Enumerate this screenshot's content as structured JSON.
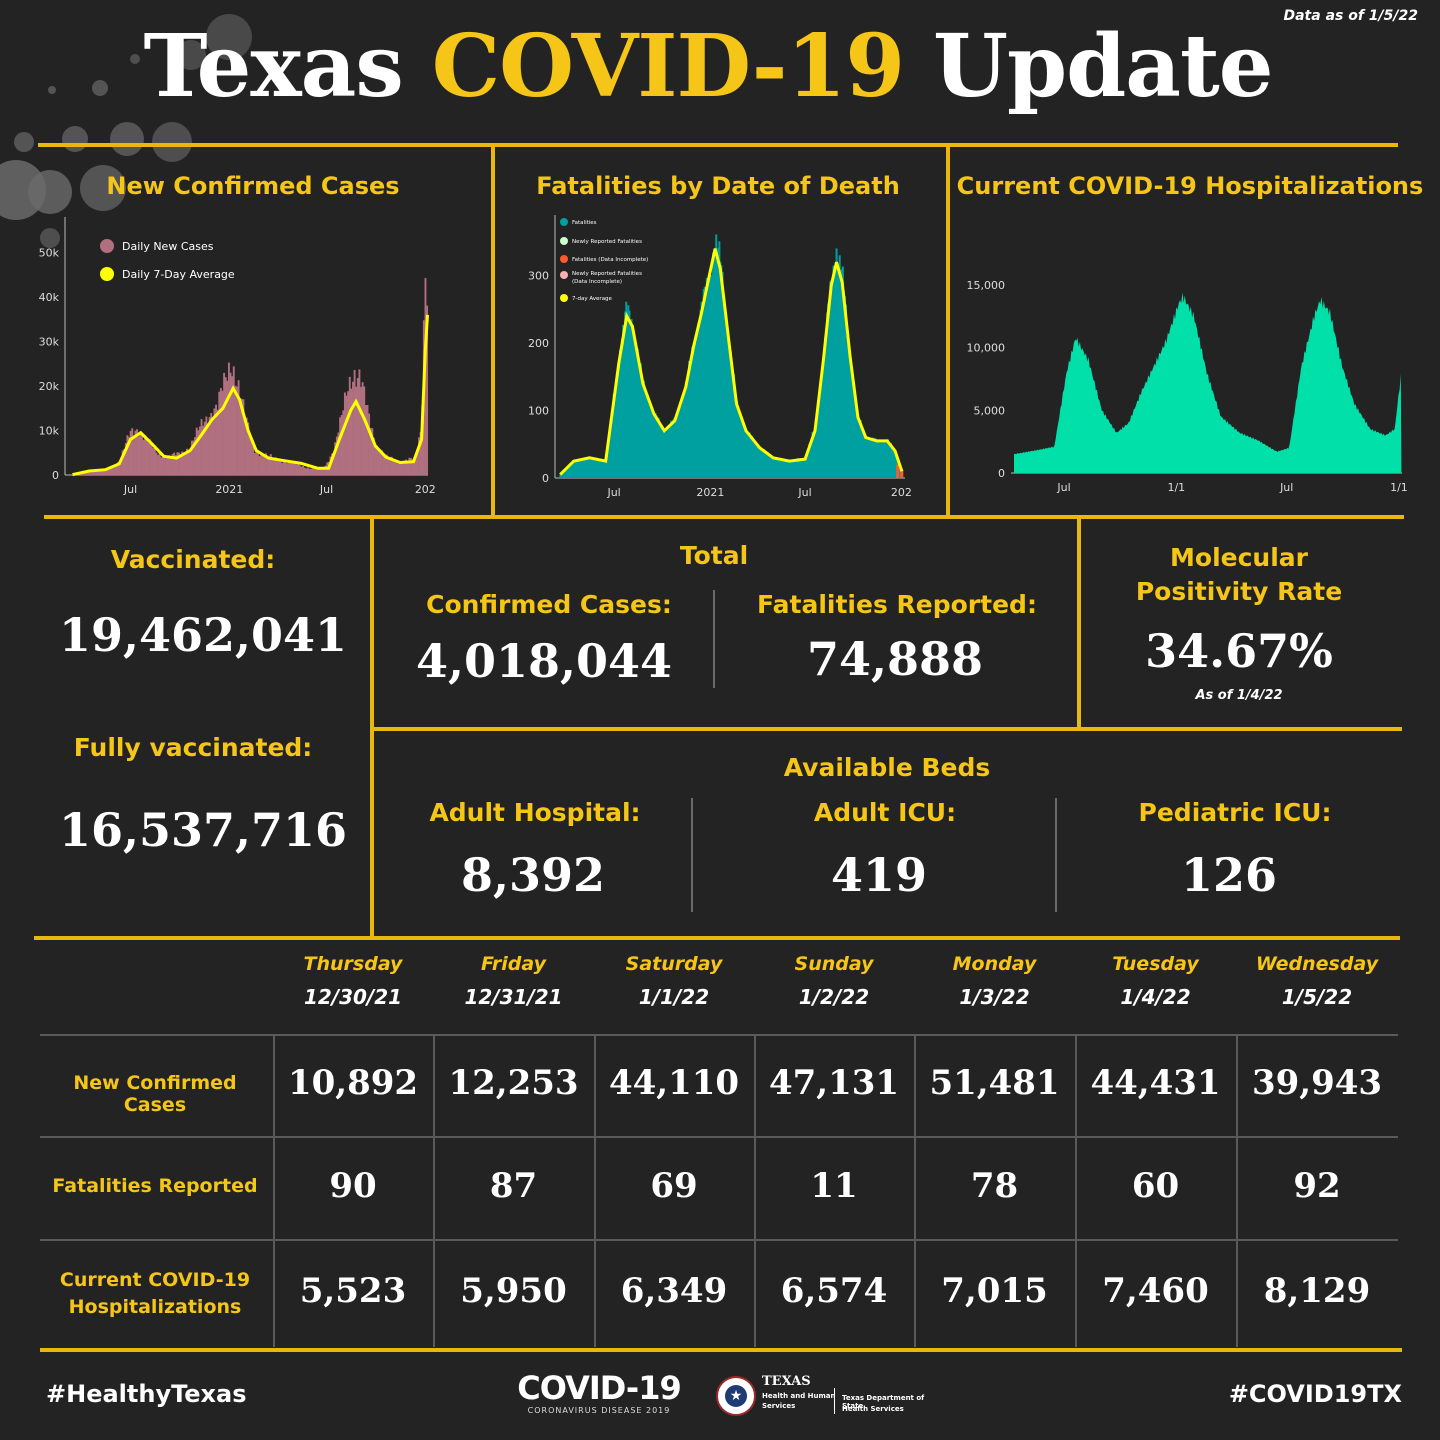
{
  "header": {
    "title_part1": "Texas",
    "title_part2": "COVID-19",
    "title_part3": "Update",
    "data_as_of": "Data as of 1/5/22"
  },
  "colors": {
    "background": "#232323",
    "accent": "#f5c518",
    "divider": "#e8b80c",
    "cases_bar": "#b07080",
    "average_line": "#ffff00",
    "fatalities_bar": "#00a0a0",
    "hospitalizations_area": "#00e0a8"
  },
  "charts": {
    "cases_title": "New Confirmed Cases",
    "fatalities_title": "Fatalities by Date of Death",
    "hosp_title": "Current COVID-19 Hospitalizations"
  },
  "chart_data": [
    {
      "type": "bar",
      "title": "New Confirmed Cases",
      "xlabel": "",
      "ylabel": "",
      "x_ticks": [
        "Jul",
        "2021",
        "Jul",
        "202"
      ],
      "y_ticks": [
        "0",
        "10k",
        "20k",
        "30k",
        "40k",
        "50k"
      ],
      "ylim": [
        0,
        58000
      ],
      "legend_position": "top-left",
      "series": [
        {
          "name": "Daily New Cases",
          "x": [
            "2020-03-15",
            "2020-04-15",
            "2020-05-15",
            "2020-06-10",
            "2020-07-01",
            "2020-07-15",
            "2020-08-01",
            "2020-08-20",
            "2020-09-10",
            "2020-10-01",
            "2020-10-20",
            "2020-11-10",
            "2020-11-25",
            "2020-12-10",
            "2020-12-25",
            "2021-01-05",
            "2021-01-15",
            "2021-01-30",
            "2021-02-15",
            "2021-03-05",
            "2021-04-01",
            "2021-05-01",
            "2021-06-01",
            "2021-06-25",
            "2021-07-15",
            "2021-07-30",
            "2021-08-10",
            "2021-08-20",
            "2021-09-01",
            "2021-09-15",
            "2021-10-01",
            "2021-10-20",
            "2021-11-10",
            "2021-11-30",
            "2021-12-15",
            "2021-12-25",
            "2022-01-01",
            "2022-01-05"
          ],
          "values": [
            100,
            1000,
            1200,
            3000,
            9500,
            10800,
            7500,
            5000,
            4000,
            4800,
            6500,
            11000,
            14000,
            15500,
            21000,
            26000,
            22000,
            13000,
            6000,
            4500,
            3500,
            2600,
            1500,
            1200,
            6000,
            13000,
            20000,
            24000,
            22000,
            14000,
            7000,
            4000,
            3000,
            3500,
            3500,
            12000,
            51500,
            40000
          ]
        },
        {
          "name": "Daily 7-Day Average",
          "x": [
            "2020-03-15",
            "2020-04-15",
            "2020-05-15",
            "2020-06-10",
            "2020-07-01",
            "2020-07-20",
            "2020-08-10",
            "2020-09-01",
            "2020-09-25",
            "2020-10-20",
            "2020-11-10",
            "2020-11-30",
            "2020-12-20",
            "2021-01-08",
            "2021-01-20",
            "2021-02-05",
            "2021-02-20",
            "2021-03-15",
            "2021-04-15",
            "2021-05-15",
            "2021-06-15",
            "2021-07-05",
            "2021-07-25",
            "2021-08-15",
            "2021-08-25",
            "2021-09-10",
            "2021-09-30",
            "2021-10-20",
            "2021-11-15",
            "2021-12-10",
            "2021-12-25",
            "2022-01-01",
            "2022-01-05"
          ],
          "values": [
            100,
            900,
            1200,
            2500,
            8000,
            9500,
            7000,
            4200,
            3800,
            5500,
            9000,
            12500,
            15000,
            19500,
            17000,
            10000,
            5500,
            3800,
            3200,
            2600,
            1500,
            1500,
            8000,
            14500,
            16500,
            12500,
            6500,
            4000,
            2800,
            3000,
            8000,
            28000,
            36000
          ]
        }
      ]
    },
    {
      "type": "bar",
      "title": "Fatalities by Date of Death",
      "xlabel": "",
      "ylabel": "",
      "x_ticks": [
        "Jul",
        "2021",
        "Jul",
        "202"
      ],
      "y_ticks": [
        "0",
        "100",
        "200",
        "300"
      ],
      "ylim": [
        0,
        390
      ],
      "legend_position": "top-left",
      "series": [
        {
          "name": "Fatalities",
          "x": [
            "2020-03-20",
            "2020-04-15",
            "2020-05-15",
            "2020-06-15",
            "2020-07-10",
            "2020-07-25",
            "2020-08-05",
            "2020-08-25",
            "2020-09-15",
            "2020-10-05",
            "2020-10-25",
            "2020-11-15",
            "2020-11-30",
            "2020-12-15",
            "2020-12-30",
            "2021-01-10",
            "2021-01-20",
            "2021-02-05",
            "2021-02-20",
            "2021-03-10",
            "2021-04-05",
            "2021-05-01",
            "2021-06-01",
            "2021-07-01",
            "2021-07-20",
            "2021-08-05",
            "2021-08-20",
            "2021-08-30",
            "2021-09-10",
            "2021-09-25",
            "2021-10-10",
            "2021-10-25",
            "2021-11-15",
            "2021-12-05",
            "2021-12-20",
            "2022-01-02"
          ],
          "values": [
            5,
            25,
            30,
            25,
            180,
            250,
            230,
            140,
            95,
            70,
            85,
            135,
            200,
            250,
            300,
            350,
            320,
            210,
            110,
            70,
            45,
            30,
            25,
            30,
            75,
            180,
            290,
            340,
            300,
            180,
            90,
            60,
            55,
            55,
            40,
            10
          ]
        },
        {
          "name": "Newly Reported Fatalities",
          "x": [],
          "values": []
        },
        {
          "name": "Fatalities (Data Incomplete)",
          "x": [
            "2021-12-25",
            "2022-01-02"
          ],
          "values": [
            20,
            12
          ]
        },
        {
          "name": "Newly Reported Fatalities (Data Incomplete)",
          "x": [],
          "values": []
        },
        {
          "name": "7-day Average",
          "x": [
            "2020-03-20",
            "2020-04-15",
            "2020-05-15",
            "2020-06-15",
            "2020-07-10",
            "2020-07-25",
            "2020-08-05",
            "2020-08-25",
            "2020-09-15",
            "2020-10-05",
            "2020-10-25",
            "2020-11-15",
            "2020-11-30",
            "2020-12-15",
            "2020-12-30",
            "2021-01-10",
            "2021-01-20",
            "2021-02-05",
            "2021-02-20",
            "2021-03-10",
            "2021-04-05",
            "2021-05-01",
            "2021-06-01",
            "2021-07-01",
            "2021-07-20",
            "2021-08-05",
            "2021-08-20",
            "2021-08-30",
            "2021-09-10",
            "2021-09-25",
            "2021-10-10",
            "2021-10-25",
            "2021-11-15",
            "2021-12-05",
            "2021-12-20",
            "2022-01-02"
          ],
          "values": [
            5,
            25,
            30,
            25,
            170,
            240,
            225,
            140,
            95,
            70,
            85,
            135,
            195,
            245,
            300,
            340,
            310,
            205,
            110,
            70,
            45,
            30,
            25,
            28,
            70,
            175,
            285,
            320,
            290,
            180,
            90,
            60,
            55,
            55,
            40,
            10
          ]
        }
      ]
    },
    {
      "type": "area",
      "title": "Current COVID-19 Hospitalizations",
      "xlabel": "",
      "ylabel": "",
      "x_ticks": [
        "Jul",
        "1/1",
        "Jul",
        "1/1"
      ],
      "y_ticks": [
        "0",
        "5,000",
        "10,000",
        "15,000"
      ],
      "ylim": [
        0,
        19000
      ],
      "series": [
        {
          "name": "",
          "x": [
            "2020-04-10",
            "2020-05-15",
            "2020-06-15",
            "2020-07-05",
            "2020-07-20",
            "2020-08-10",
            "2020-09-01",
            "2020-09-25",
            "2020-10-15",
            "2020-11-05",
            "2020-11-25",
            "2020-12-15",
            "2021-01-05",
            "2021-01-12",
            "2021-01-30",
            "2021-02-20",
            "2021-03-15",
            "2021-04-15",
            "2021-05-15",
            "2021-06-15",
            "2021-07-05",
            "2021-07-25",
            "2021-08-15",
            "2021-08-25",
            "2021-09-10",
            "2021-09-30",
            "2021-10-20",
            "2021-11-15",
            "2021-12-10",
            "2021-12-25",
            "2022-01-05"
          ],
          "values": [
            1500,
            1800,
            2100,
            8000,
            10800,
            9000,
            5000,
            3200,
            4000,
            6500,
            8500,
            10500,
            13500,
            14100,
            12500,
            8000,
            4500,
            3200,
            2600,
            1700,
            2000,
            8500,
            12500,
            13800,
            12800,
            8500,
            5500,
            3500,
            3000,
            3500,
            8100
          ]
        }
      ]
    }
  ],
  "stats": {
    "vaccinated_label": "Vaccinated:",
    "vaccinated_value": "19,462,041",
    "fully_vaccinated_label": "Fully vaccinated:",
    "fully_vaccinated_value": "16,537,716",
    "total_label": "Total",
    "confirmed_label": "Confirmed Cases:",
    "confirmed_value": "4,018,044",
    "fatalities_label": "Fatalities Reported:",
    "fatalities_value": "74,888",
    "positivity_label_1": "Molecular",
    "positivity_label_2": "Positivity Rate",
    "positivity_value": "34.67%",
    "positivity_asof": "As of 1/4/22",
    "beds_label": "Available Beds",
    "adult_hospital_label": "Adult Hospital:",
    "adult_hospital_value": "8,392",
    "adult_icu_label": "Adult ICU:",
    "adult_icu_value": "419",
    "pediatric_icu_label": "Pediatric ICU:",
    "pediatric_icu_value": "126"
  },
  "table": {
    "days": [
      {
        "day": "Thursday",
        "date": "12/30/21"
      },
      {
        "day": "Friday",
        "date": "12/31/21"
      },
      {
        "day": "Saturday",
        "date": "1/1/22"
      },
      {
        "day": "Sunday",
        "date": "1/2/22"
      },
      {
        "day": "Monday",
        "date": "1/3/22"
      },
      {
        "day": "Tuesday",
        "date": "1/4/22"
      },
      {
        "day": "Wednesday",
        "date": "1/5/22"
      }
    ],
    "rows": [
      {
        "label": "New Confirmed Cases",
        "label_2": "",
        "values": [
          "10,892",
          "12,253",
          "44,110",
          "47,131",
          "51,481",
          "44,431",
          "39,943"
        ]
      },
      {
        "label": "Fatalities Reported",
        "label_2": "",
        "values": [
          "90",
          "87",
          "69",
          "11",
          "78",
          "60",
          "92"
        ]
      },
      {
        "label": "Current COVID-19",
        "label_2": "Hospitalizations",
        "values": [
          "5,523",
          "5,950",
          "6,349",
          "6,574",
          "7,015",
          "7,460",
          "8,129"
        ]
      }
    ]
  },
  "footer": {
    "hashtag_left": "#HealthyTexas",
    "hashtag_right": "#COVID19TX",
    "logo_main": "COVID-19",
    "logo_sub": "CORONAVIRUS DISEASE 2019",
    "hhs_1": "TEXAS",
    "hhs_2": "Health and Human",
    "hhs_3": "Services",
    "dshs_1": "Texas Department of State",
    "dshs_2": "Health Services"
  }
}
